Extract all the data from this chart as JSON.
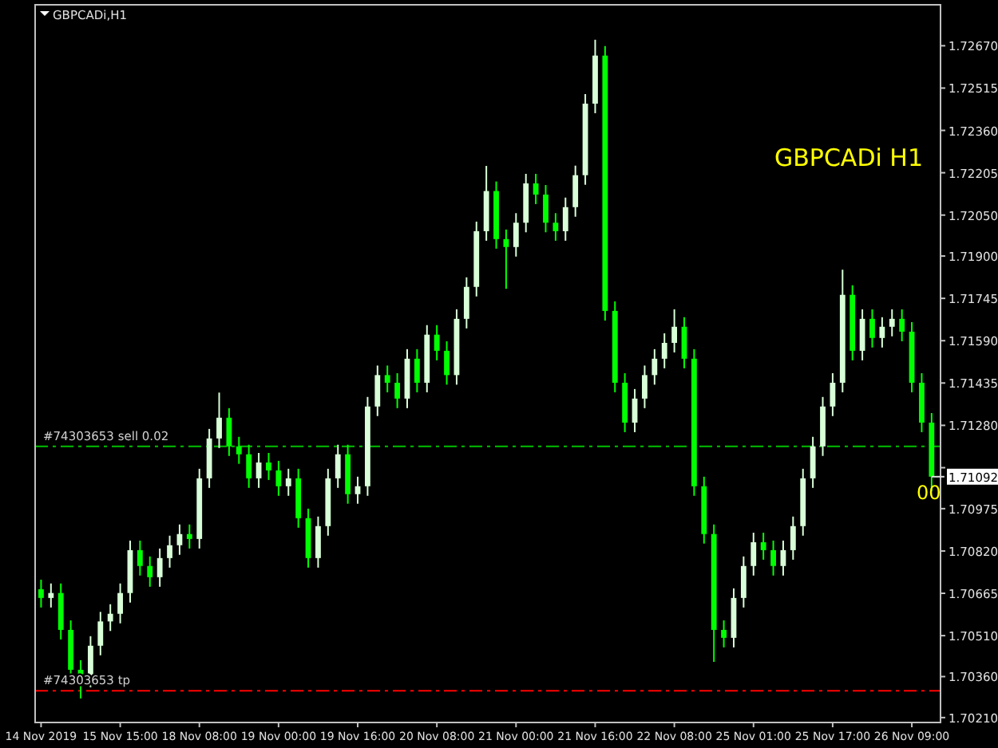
{
  "chart_data": {
    "type": "candlestick",
    "title": "GBPCADi,H1",
    "colors": [
      "#00ff00",
      "#d8ffd8",
      "#00ff00",
      "#00ff00",
      "#00ff00",
      "#d8ffd8",
      "#d8ffd8",
      "#d8ffd8",
      "#d8ffd8",
      "#d8ffd8",
      "#00ff00",
      "#00ff00",
      "#d8ffd8",
      "#d8ffd8",
      "#d8ffd8",
      "#00ff00",
      "#d8ffd8",
      "#d8ffd8",
      "#d8ffd8",
      "#00ff00",
      "#00ff00",
      "#00ff00",
      "#d8ffd8",
      "#00ff00",
      "#00ff00",
      "#d8ffd8",
      "#00ff00",
      "#00ff00",
      "#d8ffd8",
      "#d8ffd8",
      "#d8ffd8",
      "#00ff00",
      "#d8ffd8",
      "#d8ffd8",
      "#d8ffd8",
      "#00ff00",
      "#00ff00",
      "#d8ffd8",
      "#00ff00",
      "#d8ffd8",
      "#00ff00",
      "#00ff00",
      "#d8ffd8",
      "#d8ffd8",
      "#d8ffd8",
      "#d8ffd8",
      "#00ff00",
      "#00ff00",
      "#d8ffd8",
      "#d8ffd8",
      "#00ff00",
      "#00ff00",
      "#00ff00",
      "#d8ffd8",
      "#d8ffd8",
      "#d8ffd8",
      "#d8ffd8",
      "#00ff00",
      "#00ff00",
      "#00ff00",
      "#d8ffd8",
      "#d8ffd8",
      "#d8ffd8",
      "#d8ffd8",
      "#d8ffd8",
      "#00ff00",
      "#00ff00",
      "#00ff00",
      "#00ff00",
      "#00ff00",
      "#d8ffd8",
      "#d8ffd8",
      "#d8ffd8",
      "#00ff00",
      "#00ff00",
      "#d8ffd8",
      "#d8ffd8",
      "#d8ffd8",
      "#d8ffd8",
      "#d8ffd8",
      "#d8ffd8",
      "#d8ffd8",
      "#00ff00",
      "#d8ffd8",
      "#00ff00",
      "#d8ffd8",
      "#d8ffd8",
      "#00ff00",
      "#00ff00",
      "#00ff00",
      "#00ff00"
    ],
    "categories": [
      "14 Nov 2019",
      null,
      null,
      null,
      null,
      null,
      null,
      null,
      "15 Nov 15:00",
      null,
      null,
      null,
      null,
      null,
      null,
      null,
      "18 Nov 08:00",
      null,
      null,
      null,
      null,
      null,
      null,
      null,
      "19 Nov 00:00",
      null,
      null,
      null,
      null,
      null,
      null,
      null,
      "19 Nov 16:00",
      null,
      null,
      null,
      null,
      null,
      null,
      null,
      "20 Nov 08:00",
      null,
      null,
      null,
      null,
      null,
      null,
      null,
      "21 Nov 00:00",
      null,
      null,
      null,
      null,
      null,
      null,
      null,
      "21 Nov 16:00",
      null,
      null,
      null,
      null,
      null,
      null,
      null,
      "22 Nov 08:00",
      null,
      null,
      null,
      null,
      null,
      null,
      null,
      "25 Nov 01:00",
      null,
      null,
      null,
      null,
      null,
      null,
      null,
      "25 Nov 17:00",
      null,
      null,
      null,
      null,
      null,
      null,
      null,
      "26 Nov 09:00",
      null,
      null
    ],
    "ohlc": [
      [
        1.7068,
        1.70715,
        1.70613,
        1.70648
      ],
      [
        1.70648,
        1.70701,
        1.70613,
        1.70666
      ],
      [
        1.70666,
        1.70701,
        1.70496,
        1.70531
      ],
      [
        1.70531,
        1.70566,
        1.7035,
        1.70385
      ],
      [
        1.70385,
        1.7042,
        1.7028,
        1.70356
      ],
      [
        1.70356,
        1.70508,
        1.70321,
        1.70473
      ],
      [
        1.70473,
        1.70597,
        1.70438,
        1.70562
      ],
      [
        1.70562,
        1.70625,
        1.70527,
        1.7059
      ],
      [
        1.7059,
        1.70701,
        1.70555,
        1.70666
      ],
      [
        1.70666,
        1.70858,
        1.70631,
        1.70823
      ],
      [
        1.70823,
        1.70858,
        1.7073,
        1.70765
      ],
      [
        1.70765,
        1.708,
        1.70689,
        1.70724
      ],
      [
        1.70724,
        1.70829,
        1.70689,
        1.70794
      ],
      [
        1.70794,
        1.70876,
        1.70759,
        1.70841
      ],
      [
        1.70841,
        1.70917,
        1.70806,
        1.70882
      ],
      [
        1.70882,
        1.70917,
        1.70829,
        1.70864
      ],
      [
        1.70864,
        1.71121,
        1.70829,
        1.71086
      ],
      [
        1.71086,
        1.71267,
        1.71051,
        1.71232
      ],
      [
        1.71232,
        1.714,
        1.71197,
        1.71308
      ],
      [
        1.71308,
        1.71343,
        1.71168,
        1.71203
      ],
      [
        1.71203,
        1.71238,
        1.71139,
        1.71174
      ],
      [
        1.71174,
        1.71209,
        1.71051,
        1.71086
      ],
      [
        1.71086,
        1.71179,
        1.71051,
        1.71144
      ],
      [
        1.71144,
        1.71179,
        1.7108,
        1.71115
      ],
      [
        1.71115,
        1.7115,
        1.71022,
        1.71057
      ],
      [
        1.71057,
        1.71121,
        1.71022,
        1.71086
      ],
      [
        1.71086,
        1.71121,
        1.70905,
        1.7094
      ],
      [
        1.7094,
        1.70975,
        1.70759,
        1.70794
      ],
      [
        1.70794,
        1.70946,
        1.70759,
        1.70911
      ],
      [
        1.70911,
        1.71121,
        1.70876,
        1.71086
      ],
      [
        1.71086,
        1.71209,
        1.71051,
        1.71174
      ],
      [
        1.71174,
        1.71209,
        1.70993,
        1.71028
      ],
      [
        1.71028,
        1.71092,
        1.70993,
        1.71057
      ],
      [
        1.71057,
        1.71384,
        1.71022,
        1.71349
      ],
      [
        1.71349,
        1.71499,
        1.71314,
        1.71464
      ],
      [
        1.71464,
        1.71499,
        1.71401,
        1.71436
      ],
      [
        1.71436,
        1.71471,
        1.71343,
        1.71378
      ],
      [
        1.71378,
        1.71559,
        1.71343,
        1.71524
      ],
      [
        1.71524,
        1.71559,
        1.71401,
        1.71436
      ],
      [
        1.71436,
        1.71647,
        1.71401,
        1.71612
      ],
      [
        1.71612,
        1.71647,
        1.71518,
        1.71553
      ],
      [
        1.71553,
        1.71588,
        1.71429,
        1.71464
      ],
      [
        1.71464,
        1.71705,
        1.71429,
        1.7167
      ],
      [
        1.7167,
        1.71822,
        1.71635,
        1.71787
      ],
      [
        1.71787,
        1.72026,
        1.71752,
        1.71991
      ],
      [
        1.71991,
        1.7223,
        1.71956,
        1.72138
      ],
      [
        1.72138,
        1.72173,
        1.71927,
        1.71962
      ],
      [
        1.71962,
        1.71997,
        1.7178,
        1.71933
      ],
      [
        1.71933,
        1.72057,
        1.71898,
        1.72022
      ],
      [
        1.72022,
        1.72201,
        1.71987,
        1.72166
      ],
      [
        1.72166,
        1.72201,
        1.7209,
        1.72125
      ],
      [
        1.72125,
        1.7216,
        1.71987,
        1.72022
      ],
      [
        1.72022,
        1.72057,
        1.71956,
        1.71991
      ],
      [
        1.71991,
        1.72114,
        1.71956,
        1.72079
      ],
      [
        1.72079,
        1.72231,
        1.72044,
        1.72196
      ],
      [
        1.72196,
        1.72493,
        1.72161,
        1.72458
      ],
      [
        1.72458,
        1.72692,
        1.72423,
        1.72634
      ],
      [
        1.72634,
        1.72669,
        1.71664,
        1.71699
      ],
      [
        1.71699,
        1.71734,
        1.71401,
        1.71436
      ],
      [
        1.71436,
        1.71471,
        1.71255,
        1.7129
      ],
      [
        1.7129,
        1.71413,
        1.71255,
        1.71378
      ],
      [
        1.71378,
        1.71499,
        1.71343,
        1.71464
      ],
      [
        1.71464,
        1.71559,
        1.71429,
        1.71524
      ],
      [
        1.71524,
        1.71617,
        1.71489,
        1.71582
      ],
      [
        1.71582,
        1.71705,
        1.71547,
        1.71641
      ],
      [
        1.71641,
        1.71676,
        1.71489,
        1.71524
      ],
      [
        1.71524,
        1.71559,
        1.71022,
        1.71057
      ],
      [
        1.71057,
        1.71092,
        1.70847,
        1.70882
      ],
      [
        1.70882,
        1.70917,
        1.70414,
        1.70531
      ],
      [
        1.70531,
        1.70566,
        1.70467,
        1.70502
      ],
      [
        1.70502,
        1.70683,
        1.70467,
        1.70648
      ],
      [
        1.70648,
        1.708,
        1.70613,
        1.70765
      ],
      [
        1.70765,
        1.70887,
        1.7073,
        1.70852
      ],
      [
        1.70852,
        1.70887,
        1.70788,
        1.70823
      ],
      [
        1.70823,
        1.70858,
        1.7073,
        1.70765
      ],
      [
        1.70765,
        1.70858,
        1.7073,
        1.70823
      ],
      [
        1.70823,
        1.70946,
        1.70788,
        1.70911
      ],
      [
        1.70911,
        1.71121,
        1.70876,
        1.71086
      ],
      [
        1.71086,
        1.71238,
        1.71051,
        1.71203
      ],
      [
        1.71203,
        1.71384,
        1.71168,
        1.71349
      ],
      [
        1.71349,
        1.71471,
        1.71314,
        1.71436
      ],
      [
        1.71436,
        1.7185,
        1.71401,
        1.71758
      ],
      [
        1.71758,
        1.71793,
        1.71518,
        1.71553
      ],
      [
        1.71553,
        1.71705,
        1.71518,
        1.7167
      ],
      [
        1.7167,
        1.71705,
        1.71565,
        1.716
      ],
      [
        1.716,
        1.71676,
        1.71565,
        1.71641
      ],
      [
        1.71641,
        1.71705,
        1.71606,
        1.7167
      ],
      [
        1.7167,
        1.71705,
        1.71588,
        1.71623
      ],
      [
        1.71623,
        1.71658,
        1.71401,
        1.71436
      ],
      [
        1.71436,
        1.71471,
        1.71255,
        1.7129
      ],
      [
        1.7129,
        1.71325,
        1.7104,
        1.71092
      ]
    ],
    "ylim": [
      1.70192,
      1.7282
    ],
    "yticks": [
      {
        "value": 1.7267,
        "label": "1.72670"
      },
      1.72515,
      {
        "value": 1.7236,
        "label": "1.72360"
      },
      1.72205,
      {
        "value": 1.7205,
        "label": "1.72050"
      },
      {
        "value": 1.719,
        "label": "1.71900"
      },
      1.71745,
      {
        "value": 1.7159,
        "label": "1.71590"
      },
      1.71435,
      {
        "value": 1.7128,
        "label": "1.71280"
      },
      {
        "value": 1.71125,
        "label": null
      },
      1.70975,
      {
        "value": 1.7082,
        "label": "1.70820"
      },
      1.70665,
      {
        "value": 1.7051,
        "label": "1.70510"
      },
      {
        "value": 1.7036,
        "label": "1.70360"
      },
      {
        "value": 1.7021,
        "label": "1.70210"
      }
    ],
    "ref_lines": [
      {
        "axis": "y",
        "value": 1.71203,
        "label": "#74303653 sell 0.02",
        "color": "#00c000",
        "line_style": "dashed"
      },
      {
        "axis": "y",
        "value": 1.70308,
        "label": "#74303653 tp",
        "color": "#ff0000",
        "line_style": "dashed"
      }
    ],
    "annotations": [
      "GBPCADi H1",
      "1.71092",
      "00"
    ],
    "grid": false
  }
}
